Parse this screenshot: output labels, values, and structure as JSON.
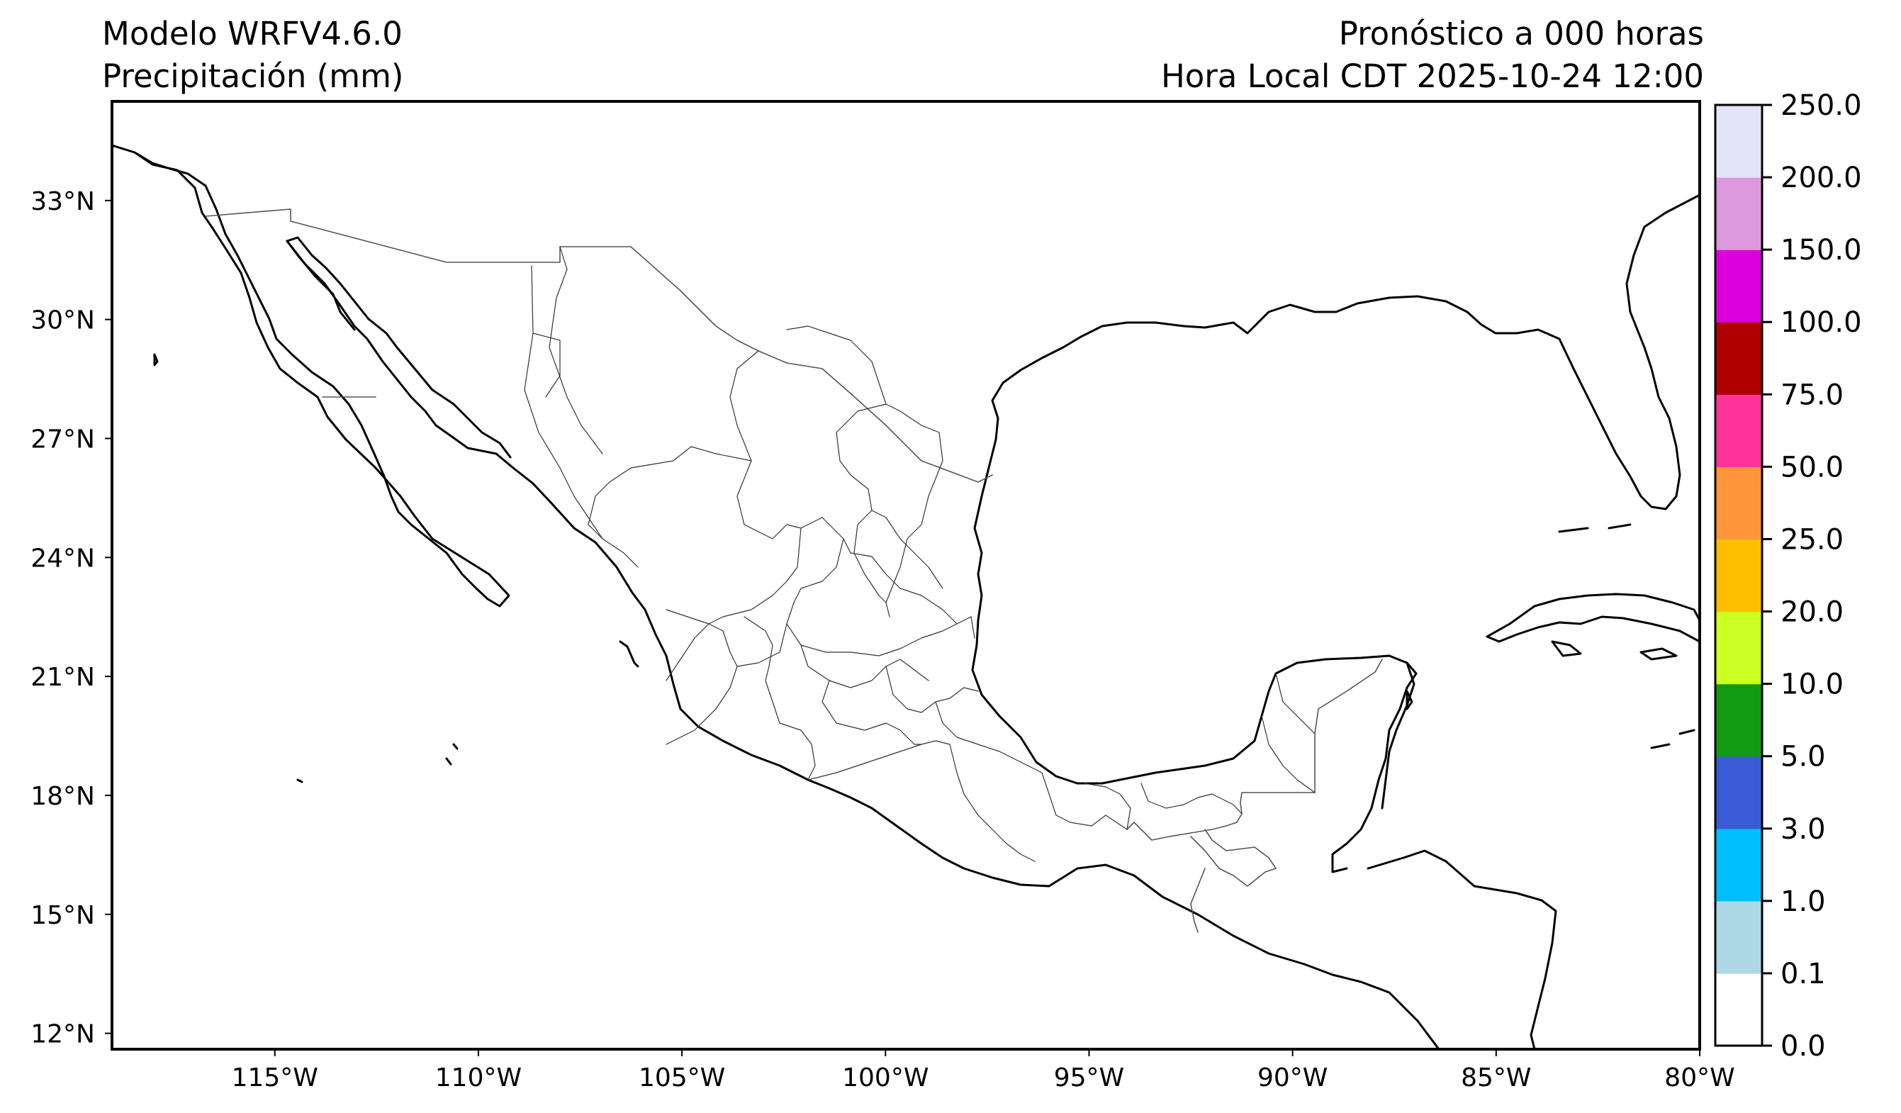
{
  "header": {
    "model": "Modelo WRFV4.6.0",
    "variable": "Precipitación (mm)",
    "forecast": "Pronóstico a 000 horas",
    "local_time": "Hora Local CDT 2025-10-24 12:00"
  },
  "map": {
    "lon_range": [
      -119.0,
      -80.0
    ],
    "lat_range": [
      11.6,
      35.5
    ],
    "lat_ticks": [
      {
        "value": 12,
        "label": "12°N"
      },
      {
        "value": 15,
        "label": "15°N"
      },
      {
        "value": 18,
        "label": "18°N"
      },
      {
        "value": 21,
        "label": "21°N"
      },
      {
        "value": 24,
        "label": "24°N"
      },
      {
        "value": 27,
        "label": "27°N"
      },
      {
        "value": 30,
        "label": "30°N"
      },
      {
        "value": 33,
        "label": "33°N"
      }
    ],
    "lon_ticks": [
      {
        "value": -115,
        "label": "115°W"
      },
      {
        "value": -110,
        "label": "110°W"
      },
      {
        "value": -105,
        "label": "105°W"
      },
      {
        "value": -100,
        "label": "100°W"
      },
      {
        "value": -95,
        "label": "95°W"
      },
      {
        "value": -90,
        "label": "90°W"
      },
      {
        "value": -85,
        "label": "85°W"
      },
      {
        "value": -80,
        "label": "80°W"
      }
    ]
  },
  "colorbar": {
    "levels": [
      {
        "label": "0.0",
        "color": "#ffffff"
      },
      {
        "label": "0.1",
        "color": "#add8e6"
      },
      {
        "label": "1.0",
        "color": "#00bfff"
      },
      {
        "label": "3.0",
        "color": "#3a5bd6"
      },
      {
        "label": "5.0",
        "color": "#129b12"
      },
      {
        "label": "10.0",
        "color": "#ccff22"
      },
      {
        "label": "20.0",
        "color": "#ffbf00"
      },
      {
        "label": "25.0",
        "color": "#ff963c"
      },
      {
        "label": "50.0",
        "color": "#ff3399"
      },
      {
        "label": "75.0",
        "color": "#b00000"
      },
      {
        "label": "100.0",
        "color": "#dd00dd"
      },
      {
        "label": "150.0",
        "color": "#dd99dd"
      },
      {
        "label": "200.0",
        "color": "#e4e4f8"
      },
      {
        "label": "250.0",
        "color": null
      }
    ]
  }
}
